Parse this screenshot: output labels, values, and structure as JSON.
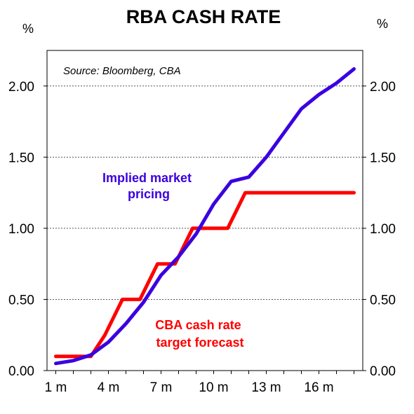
{
  "chart_data": {
    "type": "line",
    "title": "RBA CASH RATE",
    "y_unit_left": "%",
    "y_unit_right": "%",
    "source": "Source: Bloomberg, CBA",
    "x": [
      1,
      2,
      3,
      4,
      5,
      6,
      7,
      8,
      9,
      10,
      11,
      12,
      13,
      14,
      15,
      16,
      17,
      18
    ],
    "x_ticks": [
      {
        "value": 1,
        "label": "1 m"
      },
      {
        "value": 4,
        "label": "4 m"
      },
      {
        "value": 7,
        "label": "7 m"
      },
      {
        "value": 10,
        "label": "10 m"
      },
      {
        "value": 13,
        "label": "13 m"
      },
      {
        "value": 16,
        "label": "16 m"
      }
    ],
    "xlim": [
      0.5,
      18.5
    ],
    "ylim": [
      0,
      2.25
    ],
    "y_ticks": [
      "0.00",
      "0.50",
      "1.00",
      "1.50",
      "2.00"
    ],
    "grid": "horizontal dotted",
    "series": [
      {
        "name": "Implied market pricing",
        "color": "#3a00e0",
        "points": [
          [
            1,
            0.05
          ],
          [
            2,
            0.07
          ],
          [
            3,
            0.11
          ],
          [
            4,
            0.2
          ],
          [
            5,
            0.33
          ],
          [
            6,
            0.48
          ],
          [
            7,
            0.67
          ],
          [
            8,
            0.8
          ],
          [
            9,
            0.96
          ],
          [
            10,
            1.17
          ],
          [
            11,
            1.33
          ],
          [
            12,
            1.36
          ],
          [
            13,
            1.5
          ],
          [
            14,
            1.67
          ],
          [
            15,
            1.84
          ],
          [
            16,
            1.94
          ],
          [
            17,
            2.02
          ],
          [
            18,
            2.12
          ]
        ]
      },
      {
        "name": "CBA cash rate target forecast",
        "color": "#ff0000",
        "points": [
          [
            1,
            0.1
          ],
          [
            2,
            0.1
          ],
          [
            3,
            0.1
          ],
          [
            3.8,
            0.25
          ],
          [
            4.8,
            0.5
          ],
          [
            5.8,
            0.5
          ],
          [
            6.8,
            0.75
          ],
          [
            7.8,
            0.75
          ],
          [
            8.8,
            1.0
          ],
          [
            9.8,
            1.0
          ],
          [
            10.8,
            1.0
          ],
          [
            11.8,
            1.25
          ],
          [
            12.8,
            1.25
          ],
          [
            14,
            1.25
          ],
          [
            15,
            1.25
          ],
          [
            16,
            1.25
          ],
          [
            17,
            1.25
          ],
          [
            18,
            1.25
          ]
        ]
      }
    ],
    "annotations": [
      {
        "series": 0,
        "lines": [
          "Implied market",
          "pricing"
        ]
      },
      {
        "series": 1,
        "lines": [
          "CBA cash rate",
          "target forecast"
        ]
      }
    ]
  }
}
